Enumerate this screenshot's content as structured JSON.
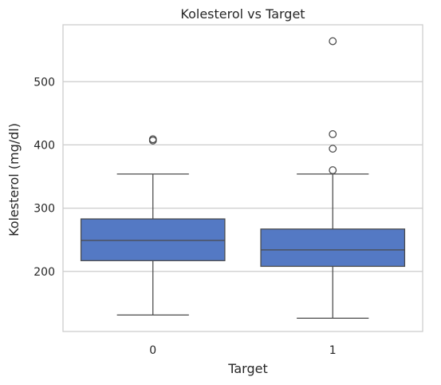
{
  "chart_data": {
    "type": "box",
    "title": "Kolesterol vs Target",
    "xlabel": "Target",
    "ylabel": "Kolesterol (mg/dl)",
    "categories": [
      "0",
      "1"
    ],
    "ylim": [
      105,
      590
    ],
    "yticks": [
      200,
      300,
      400,
      500
    ],
    "grid": true,
    "box_color": "#5479c4",
    "boxes": [
      {
        "category": "0",
        "whisker_low": 131,
        "q1": 217,
        "median": 249,
        "q3": 283,
        "whisker_high": 354,
        "outliers": [
          407,
          409
        ]
      },
      {
        "category": "1",
        "whisker_low": 126,
        "q1": 208,
        "median": 234,
        "q3": 267,
        "whisker_high": 354,
        "outliers": [
          360,
          394,
          417,
          564
        ]
      }
    ]
  }
}
